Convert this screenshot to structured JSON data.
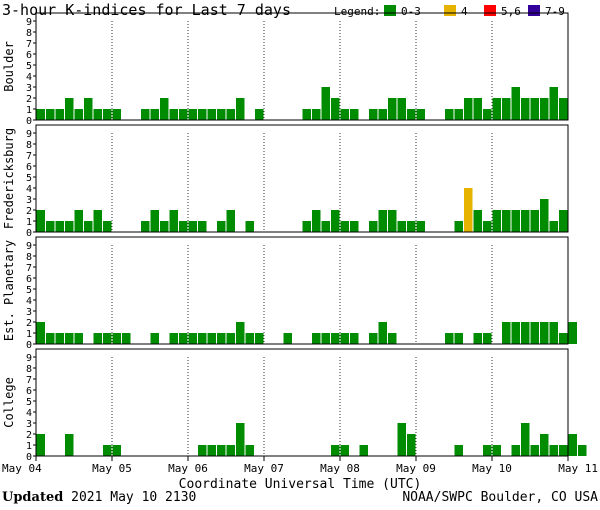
{
  "colors": {
    "quiet": "#008c00",
    "active": "#e6b400",
    "storm": "#ff0000",
    "severe": "#330099",
    "grid": "#000000"
  },
  "chart_data": {
    "type": "bar",
    "title": "3-hour K-indices for Last 7 days",
    "legend_label": "Legend:",
    "legend": [
      {
        "label": "0-3",
        "color": "#008c00"
      },
      {
        "label": "4",
        "color": "#e6b400"
      },
      {
        "label": "5,6",
        "color": "#ff0000"
      },
      {
        "label": "7-9",
        "color": "#330099"
      }
    ],
    "xlabel": "Coordinate Universal Time (UTC)",
    "x_ticks": [
      "May 04",
      "May 05",
      "May 06",
      "May 07",
      "May 08",
      "May 09",
      "May 10",
      "May 11"
    ],
    "y_ticks": [
      "0",
      "1",
      "2",
      "3",
      "4",
      "5",
      "6",
      "7",
      "8",
      "9"
    ],
    "ylim": [
      0,
      9
    ],
    "series": [
      {
        "name": "Boulder",
        "values": [
          1,
          1,
          1,
          2,
          1,
          2,
          1,
          1,
          1,
          0,
          0,
          1,
          1,
          2,
          1,
          1,
          1,
          1,
          1,
          1,
          1,
          2,
          0,
          1,
          0,
          0,
          0,
          0,
          1,
          1,
          3,
          2,
          1,
          1,
          0,
          1,
          1,
          2,
          2,
          1,
          1,
          0,
          0,
          1,
          1,
          2,
          2,
          1,
          2,
          2,
          3,
          2,
          2,
          2,
          3,
          2,
          0
        ]
      },
      {
        "name": "Fredericksburg",
        "values": [
          2,
          1,
          1,
          1,
          2,
          1,
          2,
          1,
          0,
          0,
          0,
          1,
          2,
          1,
          2,
          1,
          1,
          1,
          0,
          1,
          2,
          0,
          1,
          0,
          0,
          0,
          0,
          0,
          1,
          2,
          1,
          2,
          1,
          1,
          0,
          1,
          2,
          2,
          1,
          1,
          1,
          0,
          0,
          0,
          1,
          4,
          2,
          1,
          2,
          2,
          2,
          2,
          2,
          3,
          1,
          2,
          0
        ]
      },
      {
        "name": "Est. Planetary",
        "values": [
          2,
          1,
          1,
          1,
          1,
          0,
          1,
          1,
          1,
          1,
          0,
          0,
          1,
          0,
          1,
          1,
          1,
          1,
          1,
          1,
          1,
          2,
          1,
          1,
          0,
          0,
          1,
          0,
          0,
          1,
          1,
          1,
          1,
          1,
          0,
          1,
          2,
          1,
          0,
          0,
          0,
          0,
          0,
          1,
          1,
          0,
          1,
          1,
          0,
          2,
          2,
          2,
          2,
          2,
          2,
          1,
          2
        ]
      },
      {
        "name": "College",
        "values": [
          2,
          0,
          0,
          2,
          0,
          0,
          0,
          1,
          1,
          0,
          0,
          0,
          0,
          0,
          0,
          0,
          0,
          1,
          1,
          1,
          1,
          3,
          1,
          0,
          0,
          0,
          0,
          0,
          0,
          0,
          0,
          1,
          1,
          0,
          1,
          0,
          0,
          0,
          3,
          2,
          0,
          0,
          0,
          0,
          1,
          0,
          0,
          1,
          1,
          0,
          1,
          3,
          1,
          2,
          1,
          1,
          2,
          1
        ]
      }
    ]
  },
  "footer": {
    "updated_label": "Updated",
    "updated_value": "2021 May 10 2130",
    "source": "NOAA/SWPC Boulder, CO USA"
  }
}
